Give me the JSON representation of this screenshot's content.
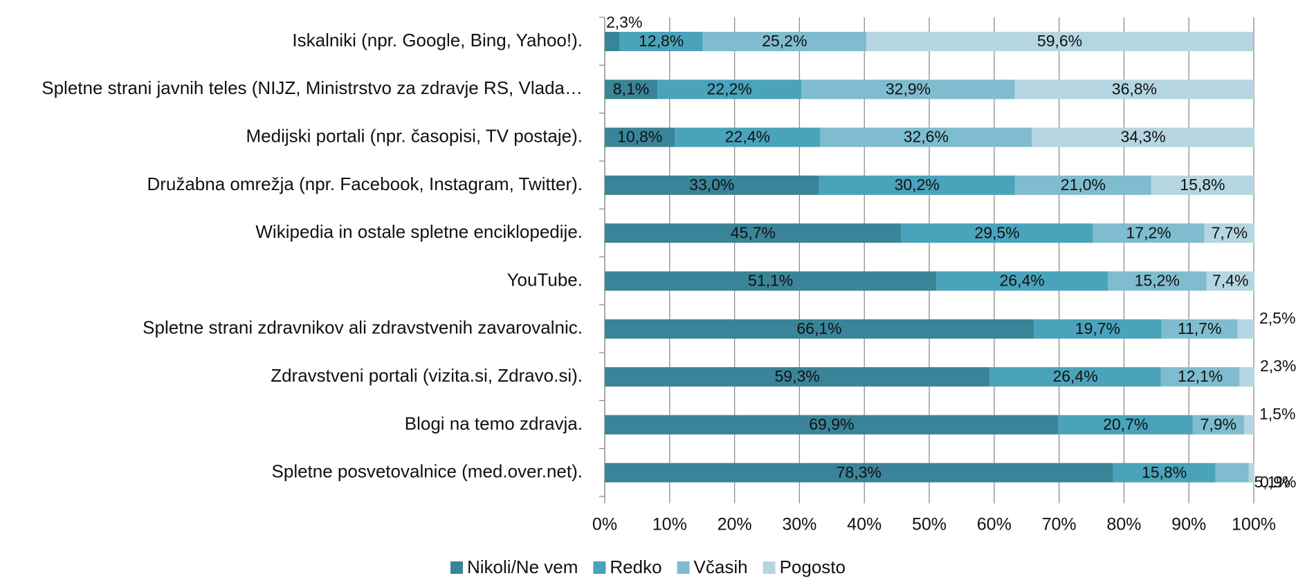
{
  "chart_data": {
    "type": "stacked_bar_horizontal",
    "categories": [
      "Iskalniki (npr. Google, Bing, Yahoo!).",
      "Spletne strani javnih teles (NIJZ, Ministrstvo za zdravje RS, Vlada…",
      "Medijski portali (npr. časopisi, TV postaje).",
      "Družabna omrežja (npr. Facebook, Instagram, Twitter).",
      "Wikipedia in ostale spletne enciklopedije.",
      "YouTube.",
      "Spletne strani zdravnikov ali zdravstvenih zavarovalnic.",
      "Zdravstveni portali (vizita.si, Zdravo.si).",
      "Blogi na temo zdravja.",
      "Spletne posvetovalnice (med.over.net)."
    ],
    "series": [
      {
        "name": "Nikoli/Ne vem",
        "color": "#3a8499",
        "values": [
          2.3,
          8.1,
          10.8,
          33.0,
          45.7,
          51.1,
          66.1,
          59.3,
          69.9,
          78.3
        ],
        "value_labels": [
          "2,3%",
          "8,1%",
          "10,8%",
          "33,0%",
          "45,7%",
          "51,1%",
          "66,1%",
          "59,3%",
          "69,9%",
          "78,3%"
        ]
      },
      {
        "name": "Redko",
        "color": "#4aa3bb",
        "values": [
          12.8,
          22.2,
          22.4,
          30.2,
          29.5,
          26.4,
          19.7,
          26.4,
          20.7,
          15.8
        ],
        "value_labels": [
          "12,8%",
          "22,2%",
          "22,4%",
          "30,2%",
          "29,5%",
          "26,4%",
          "19,7%",
          "26,4%",
          "20,7%",
          "15,8%"
        ]
      },
      {
        "name": "Včasih",
        "color": "#7fbccf",
        "values": [
          25.2,
          32.9,
          32.6,
          21.0,
          17.2,
          15.2,
          11.7,
          12.1,
          7.9,
          5.1
        ],
        "value_labels": [
          "25,2%",
          "32,9%",
          "32,6%",
          "21,0%",
          "17,2%",
          "15,2%",
          "11,7%",
          "12,1%",
          "7,9%",
          "5,1%"
        ]
      },
      {
        "name": "Pogosto",
        "color": "#b5d6e1",
        "values": [
          59.6,
          36.8,
          34.3,
          15.8,
          7.7,
          7.4,
          2.5,
          2.3,
          1.5,
          0.9
        ],
        "value_labels": [
          "59,6%",
          "36,8%",
          "34,3%",
          "15,8%",
          "7,7%",
          "7,4%",
          "2,5%",
          "2,3%",
          "1,5%",
          "0,9%"
        ]
      }
    ],
    "xlim": [
      0,
      100
    ],
    "xticks": [
      {
        "value": 0,
        "label": "0%"
      },
      {
        "value": 10,
        "label": "10%"
      },
      {
        "value": 20,
        "label": "20%"
      },
      {
        "value": 30,
        "label": "30%"
      },
      {
        "value": 40,
        "label": "40%"
      },
      {
        "value": 50,
        "label": "50%"
      },
      {
        "value": 60,
        "label": "60%"
      },
      {
        "value": 70,
        "label": "70%"
      },
      {
        "value": 80,
        "label": "80%"
      },
      {
        "value": 90,
        "label": "90%"
      },
      {
        "value": 100,
        "label": "100%"
      }
    ],
    "grid": true,
    "legend": "bottom"
  }
}
